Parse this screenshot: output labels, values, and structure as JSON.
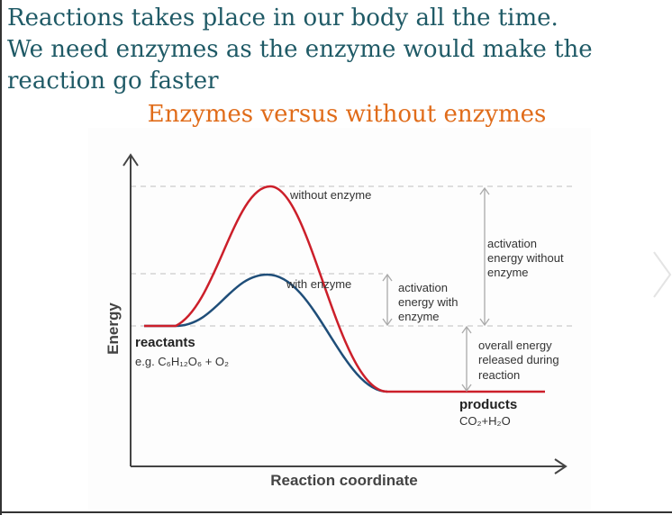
{
  "heading": {
    "lines": [
      "Reactions takes place in our body all the time.",
      "We need enzymes as the enzyme would make the",
      "reaction go faster"
    ]
  },
  "subtitle": "Enzymes versus without enzymes",
  "diagram": {
    "y_axis_label": "Energy",
    "x_axis_label": "Reaction coordinate",
    "curve_without_enzyme": "without enzyme",
    "curve_with_enzyme": "with enzyme",
    "activation_with": [
      "activation",
      "energy with",
      "enzyme"
    ],
    "activation_without": [
      "activation",
      "energy without",
      "enzyme"
    ],
    "overall": [
      "overall energy",
      "released during",
      "reaction"
    ],
    "reactants": "reactants",
    "reactants_formula": "e.g. C₆H₁₂O₆ + O₂",
    "products": "products",
    "products_formula": "CO₂+H₂O"
  }
}
